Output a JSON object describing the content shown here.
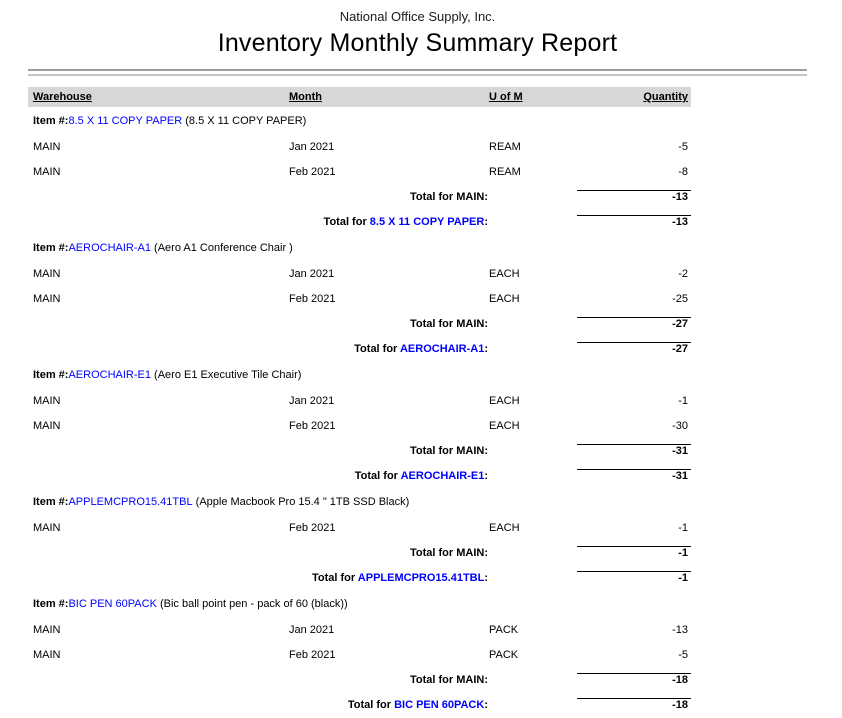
{
  "report": {
    "company": "National Office Supply, Inc.",
    "title": "Inventory Monthly Summary Report"
  },
  "table": {
    "columns": [
      "Warehouse",
      "Month",
      "U of M",
      "Quantity"
    ],
    "item_prefix": "Item #:",
    "total_prefix": "Total for",
    "sections": [
      {
        "item_code": "8.5 X 11 COPY PAPER",
        "item_description": "8.5 X 11 COPY PAPER",
        "rows": [
          {
            "warehouse": "MAIN",
            "month": "Jan 2021",
            "uom": "REAM",
            "quantity": "-5"
          },
          {
            "warehouse": "MAIN",
            "month": "Feb 2021",
            "uom": "REAM",
            "quantity": "-8"
          }
        ],
        "warehouse_total": {
          "warehouse": "MAIN",
          "quantity": "-13"
        },
        "item_total": {
          "quantity": "-13"
        }
      },
      {
        "item_code": "AEROCHAIR-A1",
        "item_description": "Aero A1 Conference Chair ",
        "rows": [
          {
            "warehouse": "MAIN",
            "month": "Jan 2021",
            "uom": "EACH",
            "quantity": "-2"
          },
          {
            "warehouse": "MAIN",
            "month": "Feb 2021",
            "uom": "EACH",
            "quantity": "-25"
          }
        ],
        "warehouse_total": {
          "warehouse": "MAIN",
          "quantity": "-27"
        },
        "item_total": {
          "quantity": "-27"
        }
      },
      {
        "item_code": "AEROCHAIR-E1",
        "item_description": "Aero E1 Executive Tile Chair",
        "rows": [
          {
            "warehouse": "MAIN",
            "month": "Jan 2021",
            "uom": "EACH",
            "quantity": "-1"
          },
          {
            "warehouse": "MAIN",
            "month": "Feb 2021",
            "uom": "EACH",
            "quantity": "-30"
          }
        ],
        "warehouse_total": {
          "warehouse": "MAIN",
          "quantity": "-31"
        },
        "item_total": {
          "quantity": "-31"
        }
      },
      {
        "item_code": "APPLEMCPRO15.41TBL",
        "item_description": "Apple Macbook Pro 15.4 \" 1TB SSD Black",
        "rows": [
          {
            "warehouse": "MAIN",
            "month": "Feb 2021",
            "uom": "EACH",
            "quantity": "-1"
          }
        ],
        "warehouse_total": {
          "warehouse": "MAIN",
          "quantity": "-1"
        },
        "item_total": {
          "quantity": "-1"
        }
      },
      {
        "item_code": "BIC PEN 60PACK",
        "item_description": "Bic ball point pen - pack of 60 (black)",
        "rows": [
          {
            "warehouse": "MAIN",
            "month": "Jan 2021",
            "uom": "PACK",
            "quantity": "-13"
          },
          {
            "warehouse": "MAIN",
            "month": "Feb 2021",
            "uom": "PACK",
            "quantity": "-5"
          }
        ],
        "warehouse_total": {
          "warehouse": "MAIN",
          "quantity": "-18"
        },
        "item_total": {
          "quantity": "-18"
        }
      }
    ]
  },
  "colors": {
    "link_blue": "#0000ff",
    "header_bar_bg": "#d7d7d7",
    "divider_dark": "#9e9e9e",
    "divider_light": "#c6c6c6"
  }
}
